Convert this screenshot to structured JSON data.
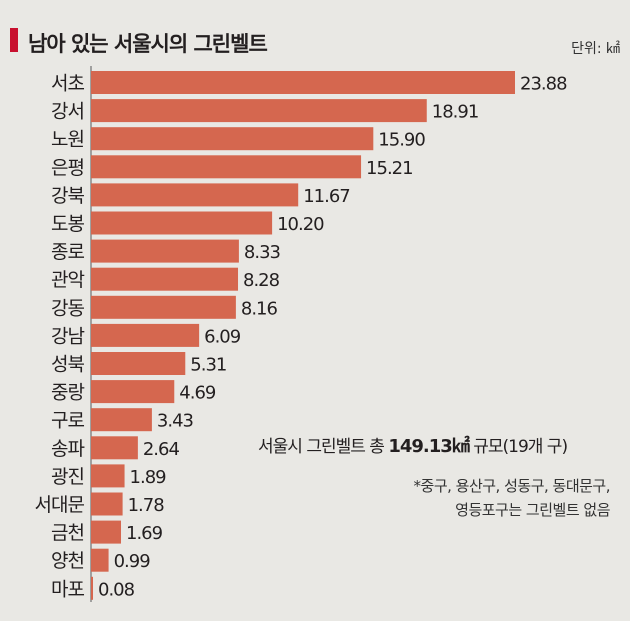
{
  "title": "남아 있는 서울시의 그린벨트",
  "unit": "단위: ㎢",
  "total_note": {
    "prefix": "서울시 그린벨트 총 ",
    "value": "149.13",
    "unit": "㎢",
    "suffix": " 규모(19개 구)"
  },
  "footnote": {
    "line1": "*중구, 용산구, 성동구, 동대문구,",
    "line2": "영등포구는 그린벨트 없음"
  },
  "colors": {
    "bar": "#d5674f",
    "accent": "#c8102e",
    "background": "#e9e8e4"
  },
  "chart_data": {
    "type": "bar",
    "orientation": "horizontal",
    "categories": [
      "서초",
      "강서",
      "노원",
      "은평",
      "강북",
      "도봉",
      "종로",
      "관악",
      "강동",
      "강남",
      "성북",
      "중랑",
      "구로",
      "송파",
      "광진",
      "서대문",
      "금천",
      "양천",
      "마포"
    ],
    "values": [
      23.88,
      18.91,
      15.9,
      15.21,
      11.67,
      10.2,
      8.33,
      8.28,
      8.16,
      6.09,
      5.31,
      4.69,
      3.43,
      2.64,
      1.89,
      1.78,
      1.69,
      0.99,
      0.08
    ],
    "value_labels": [
      "23.88",
      "18.91",
      "15.90",
      "15.21",
      "11.67",
      "10.20",
      "8.33",
      "8.28",
      "8.16",
      "6.09",
      "5.31",
      "4.69",
      "3.43",
      "2.64",
      "1.89",
      "1.78",
      "1.69",
      "0.99",
      "0.08"
    ],
    "title": "남아 있는 서울시의 그린벨트",
    "unit": "㎢",
    "xlim": [
      0,
      23.88
    ],
    "grid": false
  }
}
